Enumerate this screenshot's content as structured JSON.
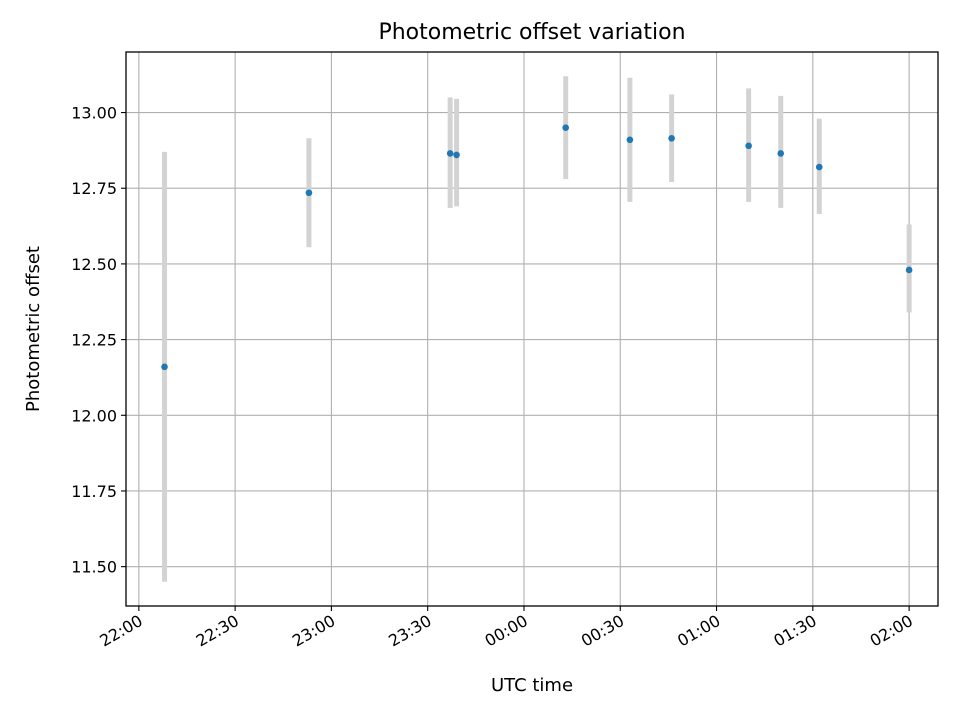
{
  "chart_data": {
    "type": "scatter",
    "title": "Photometric offset variation",
    "xlabel": "UTC time",
    "ylabel": "Photometric offset",
    "xlim": [
      "21:56",
      "02:09"
    ],
    "ylim": [
      11.37,
      13.2
    ],
    "grid": true,
    "xticks": [
      "22:00",
      "22:30",
      "23:00",
      "23:30",
      "00:00",
      "00:30",
      "01:00",
      "01:30",
      "02:00"
    ],
    "yticks": [
      "11.50",
      "11.75",
      "12.00",
      "12.25",
      "12.50",
      "12.75",
      "13.00"
    ],
    "series": [
      {
        "marker_color": "#1f77b4",
        "errorbar_color": "#d3d3d3",
        "points": [
          {
            "x": "22:08",
            "y": 12.16,
            "ylow": 11.45,
            "yhigh": 12.87
          },
          {
            "x": "22:53",
            "y": 12.735,
            "ylow": 12.555,
            "yhigh": 12.915
          },
          {
            "x": "23:37",
            "y": 12.865,
            "ylow": 12.685,
            "yhigh": 13.05
          },
          {
            "x": "23:39",
            "y": 12.86,
            "ylow": 12.69,
            "yhigh": 13.045
          },
          {
            "x": "00:13",
            "y": 12.95,
            "ylow": 12.78,
            "yhigh": 13.12
          },
          {
            "x": "00:33",
            "y": 12.91,
            "ylow": 12.705,
            "yhigh": 13.115
          },
          {
            "x": "00:46",
            "y": 12.915,
            "ylow": 12.77,
            "yhigh": 13.06
          },
          {
            "x": "01:10",
            "y": 12.89,
            "ylow": 12.705,
            "yhigh": 13.08
          },
          {
            "x": "01:20",
            "y": 12.865,
            "ylow": 12.685,
            "yhigh": 13.055
          },
          {
            "x": "01:32",
            "y": 12.82,
            "ylow": 12.665,
            "yhigh": 12.98
          },
          {
            "x": "02:00",
            "y": 12.48,
            "ylow": 12.34,
            "yhigh": 12.63
          }
        ]
      }
    ]
  }
}
